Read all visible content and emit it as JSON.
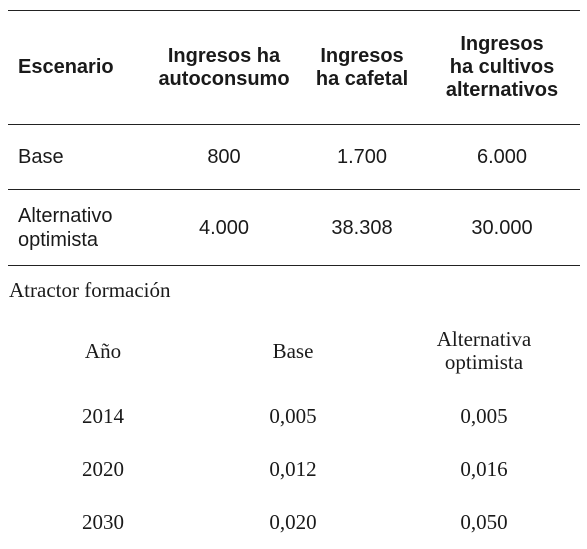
{
  "table1": {
    "headers": [
      "Escenario",
      "Ingresos ha autoconsumo",
      "Ingresos ha cafetal",
      "Ingresos ha cultivos alternativos"
    ],
    "rows": [
      [
        "Base",
        "800",
        "1.700",
        "6.000"
      ],
      [
        "Alternativo optimista",
        "4.000",
        "38.308",
        "30.000"
      ]
    ]
  },
  "caption": "Atractor formación",
  "table2": {
    "headers": [
      "Año",
      "Base",
      "Alternativa optimista"
    ],
    "rows": [
      [
        "2014",
        "0,005",
        "0,005"
      ],
      [
        "2020",
        "0,012",
        "0,016"
      ],
      [
        "2030",
        "0,020",
        "0,050"
      ]
    ]
  }
}
